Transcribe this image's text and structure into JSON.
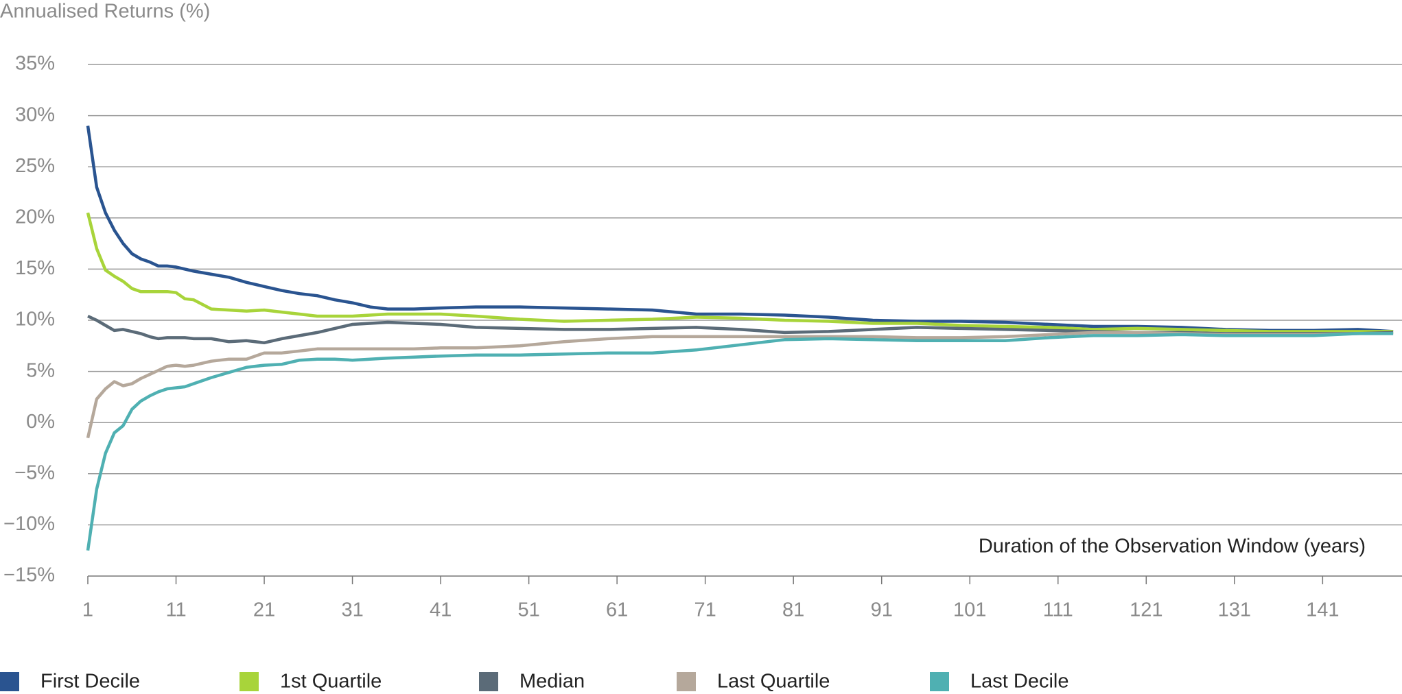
{
  "chart_data": {
    "type": "line",
    "y_axis_title": "Annualised Returns (%)",
    "annotation": "Duration of the Observation Window (years)",
    "x": [
      1,
      2,
      3,
      4,
      5,
      6,
      7,
      8,
      9,
      10,
      11,
      12,
      13,
      15,
      17,
      19,
      21,
      23,
      25,
      27,
      29,
      31,
      33,
      35,
      38,
      41,
      45,
      50,
      55,
      60,
      65,
      70,
      75,
      80,
      85,
      90,
      95,
      100,
      105,
      110,
      115,
      120,
      125,
      130,
      135,
      140,
      145,
      149
    ],
    "series": [
      {
        "name": "First Decile",
        "color": "#2a5490",
        "values": [
          29,
          23,
          20.5,
          18.8,
          17.5,
          16.5,
          16,
          15.7,
          15.3,
          15.3,
          15.2,
          15.0,
          14.8,
          14.5,
          14.2,
          13.7,
          13.3,
          12.9,
          12.6,
          12.4,
          12.0,
          11.7,
          11.3,
          11.1,
          11.1,
          11.2,
          11.3,
          11.3,
          11.2,
          11.1,
          11.0,
          10.6,
          10.6,
          10.5,
          10.3,
          10.0,
          9.9,
          9.9,
          9.8,
          9.6,
          9.4,
          9.4,
          9.3,
          9.1,
          9.0,
          9.0,
          9.1,
          8.9
        ]
      },
      {
        "name": "1st Quartile",
        "color": "#a8d43a",
        "values": [
          20.5,
          17,
          14.9,
          14.3,
          13.8,
          13.1,
          12.8,
          12.8,
          12.8,
          12.8,
          12.7,
          12.1,
          12.0,
          11.1,
          11.0,
          10.9,
          11.0,
          10.8,
          10.6,
          10.4,
          10.4,
          10.4,
          10.5,
          10.6,
          10.6,
          10.6,
          10.4,
          10.1,
          9.9,
          10.0,
          10.1,
          10.3,
          10.2,
          10.0,
          9.9,
          9.7,
          9.7,
          9.5,
          9.4,
          9.3,
          9.1,
          9.2,
          9.1,
          9.0,
          8.9,
          8.9,
          8.9,
          8.9
        ]
      },
      {
        "name": "Median",
        "color": "#5b6b78",
        "values": [
          10.4,
          10,
          9.5,
          9.0,
          9.1,
          8.9,
          8.7,
          8.4,
          8.2,
          8.3,
          8.3,
          8.3,
          8.2,
          8.2,
          7.9,
          8.0,
          7.8,
          8.2,
          8.5,
          8.8,
          9.2,
          9.6,
          9.7,
          9.8,
          9.7,
          9.6,
          9.3,
          9.2,
          9.1,
          9.1,
          9.2,
          9.3,
          9.1,
          8.8,
          8.9,
          9.1,
          9.3,
          9.2,
          9.1,
          9.0,
          8.9,
          8.8,
          8.8,
          8.7,
          8.7,
          8.7,
          8.7,
          8.8
        ]
      },
      {
        "name": "Last Quartile",
        "color": "#b5a89b",
        "values": [
          -1.5,
          2.3,
          3.3,
          4.0,
          3.6,
          3.8,
          4.3,
          4.7,
          5.1,
          5.5,
          5.6,
          5.5,
          5.6,
          6.0,
          6.2,
          6.2,
          6.8,
          6.8,
          7.0,
          7.2,
          7.2,
          7.2,
          7.2,
          7.2,
          7.2,
          7.3,
          7.3,
          7.5,
          7.9,
          8.2,
          8.4,
          8.4,
          8.4,
          8.4,
          8.4,
          8.4,
          8.3,
          8.3,
          8.4,
          8.6,
          8.8,
          8.8,
          8.7,
          8.6,
          8.6,
          8.6,
          8.7,
          8.7
        ]
      },
      {
        "name": "Last Decile",
        "color": "#4fb0b2",
        "values": [
          -12.5,
          -6.5,
          -3,
          -1,
          -0.3,
          1.3,
          2.1,
          2.6,
          3.0,
          3.3,
          3.4,
          3.5,
          3.8,
          4.4,
          4.9,
          5.4,
          5.6,
          5.7,
          6.1,
          6.2,
          6.2,
          6.1,
          6.2,
          6.3,
          6.4,
          6.5,
          6.6,
          6.6,
          6.7,
          6.8,
          6.8,
          7.1,
          7.6,
          8.1,
          8.2,
          8.1,
          8.0,
          8.0,
          8.0,
          8.3,
          8.5,
          8.5,
          8.6,
          8.5,
          8.5,
          8.5,
          8.7,
          8.7
        ]
      }
    ],
    "xlim": [
      1,
      150
    ],
    "xticks": [
      1,
      11,
      21,
      31,
      41,
      51,
      61,
      71,
      81,
      91,
      101,
      111,
      121,
      131,
      141
    ],
    "ylim": [
      -15,
      35
    ],
    "yticks": [
      {
        "value": -15,
        "label": "−15%"
      },
      {
        "value": -10,
        "label": "−10%"
      },
      {
        "value": -5,
        "label": "−5%"
      },
      {
        "value": 0,
        "label": "0%"
      },
      {
        "value": 5,
        "label": "5%"
      },
      {
        "value": 10,
        "label": "10%"
      },
      {
        "value": 15,
        "label": "15%"
      },
      {
        "value": 20,
        "label": "20%"
      },
      {
        "value": 25,
        "label": "25%"
      },
      {
        "value": 30,
        "label": "30%"
      },
      {
        "value": 35,
        "label": "35%"
      }
    ],
    "grid": true
  }
}
